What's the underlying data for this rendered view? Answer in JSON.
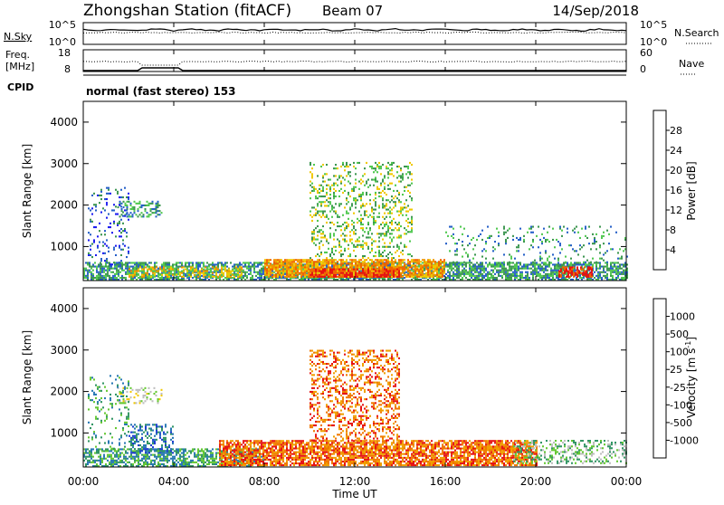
{
  "header": {
    "station": "Zhongshan Station (fitACF)",
    "beam": "Beam 07",
    "date": "14/Sep/2018"
  },
  "noise_panel": {
    "left_label": "N.Sky",
    "left_ticks": [
      "10^5",
      "10^0"
    ],
    "right_ticks": [
      "10^5",
      "10^0"
    ],
    "right_label": "N.Search"
  },
  "freq_panel": {
    "left_label_line1": "Freq.",
    "left_label_line2": "[MHz]",
    "left_ticks": [
      "18",
      "8"
    ],
    "right_ticks": [
      "60",
      "0"
    ],
    "right_label": "Nave"
  },
  "cpid": {
    "label": "CPID",
    "text": "normal (fast stereo) 153"
  },
  "chart_data": [
    {
      "type": "heatmap",
      "name": "power",
      "ylabel": "Slant Range [km]",
      "xlabel": "Time UT",
      "x_ticks": [
        "00:00",
        "04:00",
        "08:00",
        "12:00",
        "16:00",
        "20:00",
        "00:00"
      ],
      "y_ticks": [
        "1000",
        "2000",
        "3000",
        "4000"
      ],
      "ylim": [
        180,
        4500
      ],
      "xlim_hours": [
        0,
        24
      ],
      "colorbar": {
        "label": "Power [dB]",
        "ticks": [
          "4",
          "8",
          "12",
          "16",
          "20",
          "24",
          "28"
        ],
        "range": [
          0,
          32
        ],
        "colors": [
          "#1e1ef0",
          "#2660c8",
          "#3c9650",
          "#50c850",
          "#f0c800",
          "#f09600",
          "#f06400",
          "#e81010"
        ]
      },
      "regions": [
        {
          "t0": 0.0,
          "t1": 24.0,
          "r0": 180,
          "r1": 600,
          "level": 2,
          "density": 0.7
        },
        {
          "t0": 2.0,
          "t1": 7.0,
          "r0": 250,
          "r1": 500,
          "level": 4,
          "density": 0.6
        },
        {
          "t0": 8.0,
          "t1": 16.0,
          "r0": 250,
          "r1": 700,
          "level": 5,
          "density": 0.8
        },
        {
          "t0": 10.0,
          "t1": 14.0,
          "r0": 250,
          "r1": 450,
          "level": 7,
          "density": 0.7
        },
        {
          "t0": 21.0,
          "t1": 22.5,
          "r0": 250,
          "r1": 500,
          "level": 7,
          "density": 0.6
        },
        {
          "t0": 10.0,
          "t1": 14.5,
          "r0": 700,
          "r1": 3000,
          "level": 3,
          "density": 0.25
        },
        {
          "t0": 1.5,
          "t1": 3.5,
          "r0": 1700,
          "r1": 2100,
          "level": 2,
          "density": 0.35
        },
        {
          "t0": 0.2,
          "t1": 2.0,
          "r0": 500,
          "r1": 2400,
          "level": 1,
          "density": 0.15
        },
        {
          "t0": 16.0,
          "t1": 24.0,
          "r0": 600,
          "r1": 1500,
          "level": 2,
          "density": 0.12
        }
      ]
    },
    {
      "type": "heatmap",
      "name": "velocity",
      "ylabel": "Slant Range [km]",
      "xlabel": "Time UT",
      "x_ticks": [
        "00:00",
        "04:00",
        "08:00",
        "12:00",
        "16:00",
        "20:00",
        "00:00"
      ],
      "y_ticks": [
        "1000",
        "2000",
        "3000",
        "4000"
      ],
      "ylim": [
        180,
        4500
      ],
      "xlim_hours": [
        0,
        24
      ],
      "colorbar": {
        "label": "Velocity [m s^-1]",
        "ticks": [
          "1000",
          "500",
          "100",
          "25",
          "-25",
          "-100",
          "-500",
          "-1000"
        ],
        "range": [
          -1000,
          1000
        ],
        "colors": [
          "#1e3cd2",
          "#2878b4",
          "#329664",
          "#64c832",
          "#bebebe",
          "#f0c800",
          "#f0a000",
          "#f07800",
          "#e61414"
        ]
      },
      "regions": [
        {
          "t0": 0.0,
          "t1": 8.0,
          "r0": 180,
          "r1": 600,
          "level": 2,
          "density": 0.6
        },
        {
          "t0": 2.0,
          "t1": 4.0,
          "r0": 500,
          "r1": 1200,
          "level": 1,
          "density": 0.4
        },
        {
          "t0": 6.0,
          "t1": 20.0,
          "r0": 200,
          "r1": 800,
          "level": 7,
          "density": 0.75
        },
        {
          "t0": 10.0,
          "t1": 14.0,
          "r0": 800,
          "r1": 3000,
          "level": 7,
          "density": 0.35
        },
        {
          "t0": 1.5,
          "t1": 3.5,
          "r0": 1700,
          "r1": 2100,
          "level": 4,
          "density": 0.3
        },
        {
          "t0": 19.0,
          "t1": 24.0,
          "r0": 250,
          "r1": 800,
          "level": 3,
          "density": 0.35
        },
        {
          "t0": 0.2,
          "t1": 2.0,
          "r0": 600,
          "r1": 2400,
          "level": 2,
          "density": 0.15
        }
      ]
    }
  ]
}
